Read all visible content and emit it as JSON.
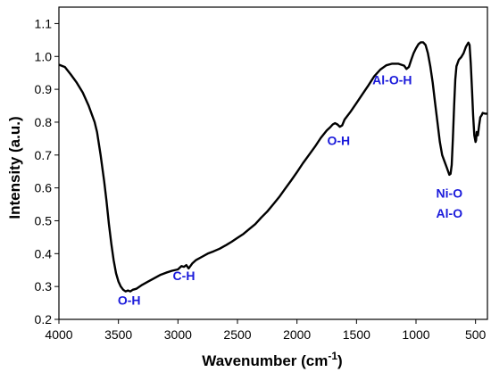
{
  "chart_data": {
    "type": "line",
    "title": "",
    "xlabel": "Wavenumber (cm",
    "xlabel_sup": "-1",
    "xlabel_end": ")",
    "ylabel": "Intensity (a.u.)",
    "xlim": [
      4000,
      400
    ],
    "ylim": [
      0.2,
      1.15
    ],
    "x_reversed": true,
    "grid": false,
    "legend": "none",
    "line_color": "#000000",
    "annotation_color": "#1a1adb",
    "x_ticks": [
      "4000",
      "3500",
      "3000",
      "2500",
      "2000",
      "1500",
      "1000",
      "500"
    ],
    "x_tick_values": [
      4000,
      3500,
      3000,
      2500,
      2000,
      1500,
      1000,
      500
    ],
    "y_ticks": [
      "0.2",
      "0.3",
      "0.4",
      "0.5",
      "0.6",
      "0.7",
      "0.8",
      "0.9",
      "1.0",
      "1.1"
    ],
    "y_tick_values": [
      0.2,
      0.3,
      0.4,
      0.5,
      0.6,
      0.7,
      0.8,
      0.9,
      1.0,
      1.1
    ],
    "series": [
      {
        "points": [
          [
            4000,
            0.975
          ],
          [
            3950,
            0.968
          ],
          [
            3900,
            0.945
          ],
          [
            3850,
            0.92
          ],
          [
            3800,
            0.89
          ],
          [
            3750,
            0.85
          ],
          [
            3700,
            0.8
          ],
          [
            3680,
            0.77
          ],
          [
            3650,
            0.7
          ],
          [
            3620,
            0.62
          ],
          [
            3600,
            0.56
          ],
          [
            3580,
            0.49
          ],
          [
            3560,
            0.43
          ],
          [
            3540,
            0.38
          ],
          [
            3520,
            0.34
          ],
          [
            3500,
            0.315
          ],
          [
            3480,
            0.3
          ],
          [
            3460,
            0.29
          ],
          [
            3440,
            0.285
          ],
          [
            3420,
            0.288
          ],
          [
            3400,
            0.285
          ],
          [
            3380,
            0.29
          ],
          [
            3350,
            0.293
          ],
          [
            3300,
            0.305
          ],
          [
            3250,
            0.315
          ],
          [
            3200,
            0.325
          ],
          [
            3150,
            0.335
          ],
          [
            3100,
            0.342
          ],
          [
            3050,
            0.348
          ],
          [
            3000,
            0.352
          ],
          [
            2970,
            0.362
          ],
          [
            2950,
            0.36
          ],
          [
            2930,
            0.365
          ],
          [
            2910,
            0.355
          ],
          [
            2880,
            0.37
          ],
          [
            2850,
            0.38
          ],
          [
            2800,
            0.39
          ],
          [
            2750,
            0.4
          ],
          [
            2700,
            0.407
          ],
          [
            2650,
            0.415
          ],
          [
            2600,
            0.425
          ],
          [
            2550,
            0.436
          ],
          [
            2500,
            0.448
          ],
          [
            2450,
            0.46
          ],
          [
            2400,
            0.475
          ],
          [
            2350,
            0.49
          ],
          [
            2300,
            0.51
          ],
          [
            2250,
            0.528
          ],
          [
            2200,
            0.55
          ],
          [
            2150,
            0.572
          ],
          [
            2100,
            0.597
          ],
          [
            2050,
            0.622
          ],
          [
            2000,
            0.648
          ],
          [
            1950,
            0.675
          ],
          [
            1900,
            0.7
          ],
          [
            1850,
            0.725
          ],
          [
            1800,
            0.752
          ],
          [
            1750,
            0.775
          ],
          [
            1720,
            0.785
          ],
          [
            1700,
            0.793
          ],
          [
            1680,
            0.797
          ],
          [
            1660,
            0.793
          ],
          [
            1640,
            0.786
          ],
          [
            1620,
            0.79
          ],
          [
            1600,
            0.808
          ],
          [
            1550,
            0.832
          ],
          [
            1500,
            0.858
          ],
          [
            1450,
            0.885
          ],
          [
            1400,
            0.912
          ],
          [
            1350,
            0.94
          ],
          [
            1300,
            0.96
          ],
          [
            1250,
            0.973
          ],
          [
            1200,
            0.978
          ],
          [
            1150,
            0.978
          ],
          [
            1100,
            0.972
          ],
          [
            1080,
            0.962
          ],
          [
            1060,
            0.968
          ],
          [
            1040,
            0.99
          ],
          [
            1020,
            1.01
          ],
          [
            1000,
            1.025
          ],
          [
            980,
            1.037
          ],
          [
            960,
            1.043
          ],
          [
            940,
            1.043
          ],
          [
            920,
            1.035
          ],
          [
            900,
            1.01
          ],
          [
            880,
            0.97
          ],
          [
            860,
            0.92
          ],
          [
            840,
            0.86
          ],
          [
            820,
            0.8
          ],
          [
            800,
            0.74
          ],
          [
            780,
            0.7
          ],
          [
            760,
            0.68
          ],
          [
            740,
            0.66
          ],
          [
            720,
            0.64
          ],
          [
            710,
            0.643
          ],
          [
            700,
            0.67
          ],
          [
            690,
            0.75
          ],
          [
            680,
            0.85
          ],
          [
            670,
            0.93
          ],
          [
            660,
            0.97
          ],
          [
            640,
            0.99
          ],
          [
            620,
            0.998
          ],
          [
            600,
            1.01
          ],
          [
            580,
            1.03
          ],
          [
            560,
            1.042
          ],
          [
            550,
            1.035
          ],
          [
            540,
            0.98
          ],
          [
            530,
            0.9
          ],
          [
            520,
            0.82
          ],
          [
            510,
            0.76
          ],
          [
            500,
            0.74
          ],
          [
            495,
            0.745
          ],
          [
            490,
            0.77
          ],
          [
            480,
            0.76
          ],
          [
            470,
            0.79
          ],
          [
            460,
            0.815
          ],
          [
            450,
            0.82
          ],
          [
            440,
            0.828
          ],
          [
            430,
            0.827
          ],
          [
            420,
            0.826
          ],
          [
            410,
            0.826
          ],
          [
            400,
            0.826
          ]
        ]
      }
    ],
    "annotations": [
      {
        "text": "O-H",
        "x": 3410,
        "y": 0.245
      },
      {
        "text": "C-H",
        "x": 2950,
        "y": 0.32
      },
      {
        "text": "O-H",
        "x": 1650,
        "y": 0.73
      },
      {
        "text": "Al-O-H",
        "x": 1200,
        "y": 0.915
      },
      {
        "text": "Ni-O",
        "x": 720,
        "y": 0.57
      },
      {
        "text": "Al-O",
        "x": 720,
        "y": 0.51
      }
    ]
  }
}
